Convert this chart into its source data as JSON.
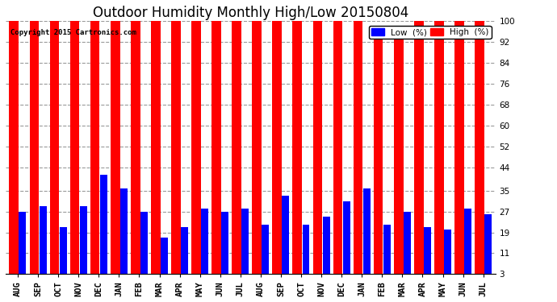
{
  "title": "Outdoor Humidity Monthly High/Low 20150804",
  "copyright": "Copyright 2015 Cartronics.com",
  "months": [
    "AUG",
    "SEP",
    "OCT",
    "NOV",
    "DEC",
    "JAN",
    "FEB",
    "MAR",
    "APR",
    "MAY",
    "JUN",
    "JUL",
    "AUG",
    "SEP",
    "OCT",
    "NOV",
    "DEC",
    "JAN",
    "FEB",
    "MAR",
    "APR",
    "MAY",
    "JUN",
    "JUL"
  ],
  "high_values": [
    100,
    100,
    100,
    100,
    100,
    100,
    100,
    100,
    100,
    100,
    100,
    100,
    100,
    100,
    100,
    100,
    100,
    100,
    93,
    93,
    100,
    100,
    100,
    100
  ],
  "low_values": [
    27,
    29,
    21,
    29,
    41,
    36,
    27,
    17,
    21,
    28,
    27,
    28,
    22,
    33,
    22,
    25,
    31,
    36,
    22,
    27,
    21,
    20,
    28,
    26
  ],
  "high_color": "#ff0000",
  "low_color": "#0000ff",
  "bg_color": "#ffffff",
  "plot_bg_color": "#ffffff",
  "grid_color": "#999999",
  "yticks": [
    3,
    11,
    19,
    27,
    35,
    44,
    52,
    60,
    68,
    76,
    84,
    92,
    100
  ],
  "ymin": 3,
  "ymax": 100,
  "title_fontsize": 12,
  "tick_fontsize": 7.5,
  "legend_fontsize": 7.5
}
